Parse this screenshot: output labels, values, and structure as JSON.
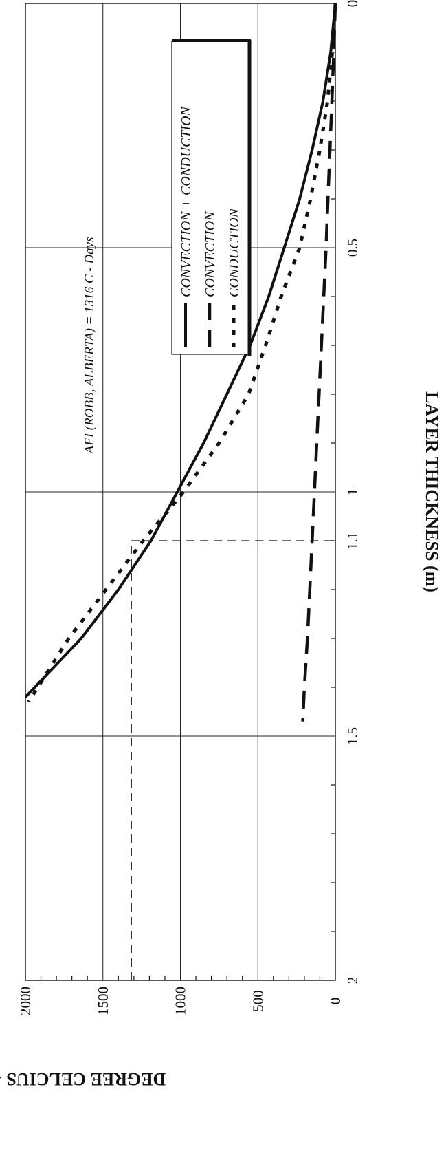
{
  "chart_data": {
    "type": "line",
    "orientation": "rotated-90-clockwise",
    "xlabel": "LAYER THICKNESS (m)",
    "ylabel": "DEGREE CELCIUS - DAYS ( C-Days)",
    "xlim": [
      0,
      2
    ],
    "ylim": [
      0,
      2000
    ],
    "x_ticks": [
      "0",
      "0.5",
      "1",
      "1.1",
      "1.5",
      "2"
    ],
    "x_tick_values": [
      0,
      0.5,
      1,
      1.1,
      1.5,
      2
    ],
    "y_ticks": [
      "0",
      "500",
      "1000",
      "1500",
      "2000"
    ],
    "y_tick_values": [
      0,
      500,
      1000,
      1500,
      2000
    ],
    "x_minor_step": 0.1,
    "y_minor_step": 100,
    "grid": true,
    "legend_position": "top-right",
    "series": [
      {
        "name": "CONVECTION + CONDUCTION",
        "style": "solid",
        "color": "#111111",
        "x": [
          0,
          0.1,
          0.2,
          0.3,
          0.4,
          0.5,
          0.6,
          0.7,
          0.8,
          0.9,
          1.0,
          1.1,
          1.2,
          1.3,
          1.42
        ],
        "y": [
          0,
          30,
          80,
          150,
          230,
          330,
          430,
          550,
          700,
          850,
          1020,
          1190,
          1400,
          1640,
          2000
        ]
      },
      {
        "name": "CONVECTION",
        "style": "dashed",
        "color": "#111111",
        "x": [
          0,
          0.1,
          0.2,
          0.3,
          0.4,
          0.5,
          0.6,
          0.7,
          0.8,
          0.9,
          1.0,
          1.1,
          1.2,
          1.3,
          1.4,
          1.47
        ],
        "y": [
          0,
          10,
          22,
          35,
          48,
          60,
          75,
          90,
          105,
          120,
          135,
          150,
          165,
          180,
          200,
          210
        ]
      },
      {
        "name": "CONDUCTION",
        "style": "dotted",
        "color": "#111111",
        "x": [
          0,
          0.1,
          0.2,
          0.3,
          0.4,
          0.5,
          0.6,
          0.7,
          0.8,
          0.9,
          1.0,
          1.1,
          1.2,
          1.3,
          1.43
        ],
        "y": [
          0,
          20,
          50,
          100,
          160,
          230,
          350,
          450,
          560,
          750,
          980,
          1240,
          1480,
          1720,
          1980
        ]
      }
    ],
    "annotations": [
      {
        "text": "AFI (ROBB, ALBERTA) = 1316 C - Days",
        "y": 1316,
        "x_end": 1.1
      }
    ]
  }
}
